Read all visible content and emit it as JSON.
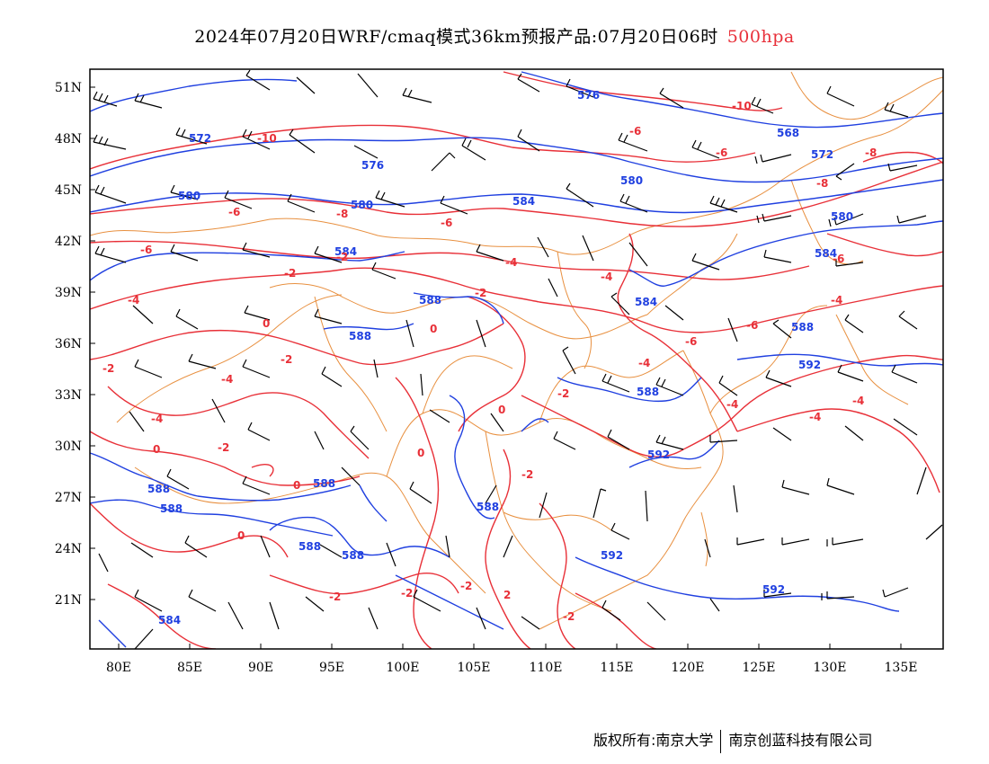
{
  "header": {
    "title": "2024年07月20日WRF/cmaq模式36km预报产品:07月20日06时",
    "level": "500hpa"
  },
  "axes": {
    "lon_ticks": [
      "80E",
      "85E",
      "90E",
      "95E",
      "100E",
      "105E",
      "110E",
      "115E",
      "120E",
      "125E",
      "130E",
      "135E"
    ],
    "lat_ticks": [
      "51N",
      "48N",
      "45N",
      "42N",
      "39N",
      "36N",
      "33N",
      "30N",
      "27N",
      "24N",
      "21N"
    ]
  },
  "colors": {
    "geopotential": "#2040e0",
    "temperature": "#e83038",
    "boundaries": "#e89040",
    "wind": "#000000"
  },
  "map_content": {
    "geopotential_labels": [
      "576",
      "572",
      "568",
      "572",
      "576",
      "580",
      "580",
      "584",
      "580",
      "584",
      "580",
      "584",
      "588",
      "588",
      "588",
      "584",
      "588",
      "592",
      "588",
      "588",
      "588",
      "592",
      "588",
      "588",
      "592",
      "592",
      "588",
      "584"
    ],
    "temperature_labels": [
      "-10",
      "-6",
      "-10",
      "-6",
      "-8",
      "-8",
      "-6",
      "-8",
      "-6",
      "-6",
      "-6",
      "-4",
      "-2",
      "-4",
      "-2",
      "-4",
      "-2",
      "-4",
      "-6",
      "-6",
      "-4",
      "0",
      "0",
      "-2",
      "-4",
      "-4",
      "-2",
      "-4",
      "-2",
      "-4",
      "-4",
      "0",
      "0",
      "-2",
      "0",
      "0",
      "-2",
      "0",
      "-2",
      "-2",
      "-2",
      "2",
      "-2"
    ]
  },
  "footer": {
    "copyright": "版权所有:南京大学",
    "company": "南京创蓝科技有限公司"
  }
}
